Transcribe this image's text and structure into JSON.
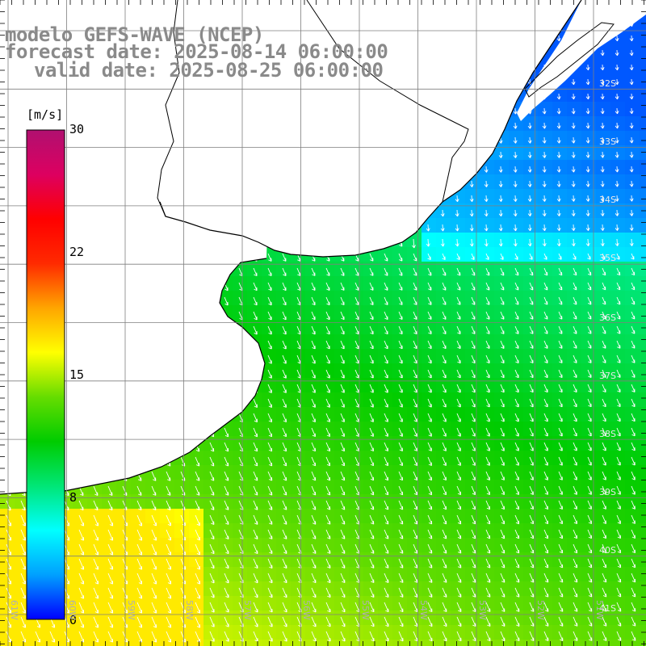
{
  "header": {
    "line1": "modelo GEFS-WAVE (NCEP)",
    "line2": "forecast date: 2025-08-14 06:00:00",
    "line3": "valid date: 2025-08-25 06:00:00"
  },
  "colorbar": {
    "unit": "[m/s]",
    "ticks": [
      "30",
      "22",
      "15",
      "8",
      "0"
    ],
    "min": 0,
    "max": 30,
    "colors": [
      "#0000ff",
      "#00a0ff",
      "#00ffff",
      "#00e676",
      "#00cc00",
      "#66dd00",
      "#ffff00",
      "#ffa500",
      "#ff2a00",
      "#ff0000",
      "#dd0060",
      "#b01070"
    ]
  },
  "lat_labels": [
    "32S",
    "33S",
    "34S",
    "35S",
    "36S",
    "37S",
    "38S",
    "39S",
    "40S",
    "41S"
  ],
  "lon_labels": [
    "61W",
    "60W",
    "59W",
    "58W",
    "57W",
    "56W",
    "55W",
    "54W",
    "53W",
    "52W",
    "51W"
  ],
  "colors": {
    "land": "#ffffff",
    "grid": "#7f7f7f",
    "coast": "#000000",
    "title": "#8a8a8a"
  }
}
